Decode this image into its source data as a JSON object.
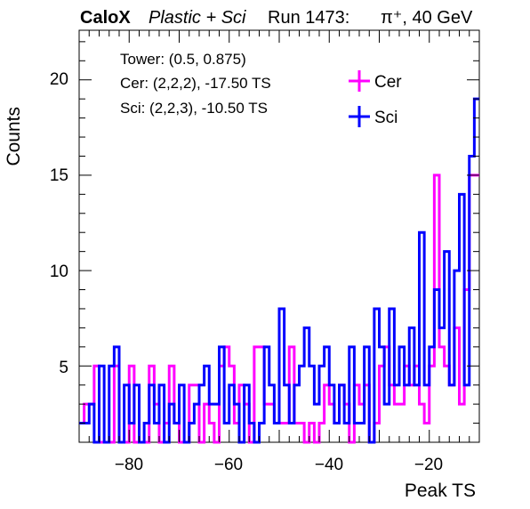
{
  "chart_data": {
    "type": "histogram",
    "title": {
      "brand": "CaloX",
      "detector": "Plastic + Sci",
      "run": "Run 1473:",
      "particle": "π⁺, 40 GeV"
    },
    "xlabel": "Peak TS",
    "ylabel": "Counts",
    "xlim": [
      -90,
      -10
    ],
    "ylim": [
      1,
      22.6
    ],
    "x_ticks": [
      -80,
      -60,
      -40,
      -20
    ],
    "x_tick_labels": [
      "−80",
      "−60",
      "−40",
      "−20"
    ],
    "y_ticks": [
      5,
      10,
      15,
      20
    ],
    "y_tick_labels": [
      "5",
      "10",
      "15",
      "20"
    ],
    "grid": false,
    "bin_width": 1,
    "bin_start": -90,
    "info_lines": [
      "Tower: (0.5, 0.875)",
      "Cer: (2,2,2), -17.50 TS",
      "Sci: (2,2,3), -10.50 TS"
    ],
    "legend_position": "top-right",
    "series": [
      {
        "name": "Cer",
        "color": "#ff00ff",
        "values": [
          2,
          3,
          3,
          5,
          1,
          1,
          1,
          5,
          1,
          1,
          5,
          1,
          1,
          1,
          5,
          3,
          1,
          2,
          5,
          2,
          1,
          1,
          4,
          4,
          1,
          3,
          2,
          1,
          5,
          6,
          5,
          2,
          4,
          3,
          1,
          6,
          6,
          3,
          3,
          2,
          2,
          2,
          6,
          2,
          2,
          1,
          2,
          1,
          2,
          4,
          3,
          2,
          4,
          3,
          1,
          4,
          3,
          4,
          1,
          2,
          5,
          6,
          4,
          3,
          3,
          5,
          4,
          5,
          3,
          2,
          5,
          15,
          6,
          5,
          4,
          7,
          3,
          9,
          15,
          15
        ]
      },
      {
        "name": "Sci",
        "color": "#0000ff",
        "values": [
          2,
          2,
          3,
          1,
          5,
          1,
          5,
          6,
          1,
          4,
          2,
          4,
          1,
          2,
          4,
          2,
          4,
          1,
          3,
          2,
          4,
          1,
          2,
          3,
          4,
          5,
          3,
          3,
          6,
          2,
          4,
          3,
          1,
          4,
          2,
          1,
          2,
          6,
          4,
          2,
          8,
          4,
          2,
          4,
          5,
          7,
          5,
          3,
          5,
          6,
          4,
          2,
          4,
          2,
          6,
          2,
          2,
          6,
          1,
          8,
          6,
          3,
          8,
          4,
          6,
          4,
          7,
          4,
          12,
          4,
          6,
          9,
          7,
          11,
          4,
          10,
          14,
          4,
          16,
          19
        ]
      }
    ]
  }
}
